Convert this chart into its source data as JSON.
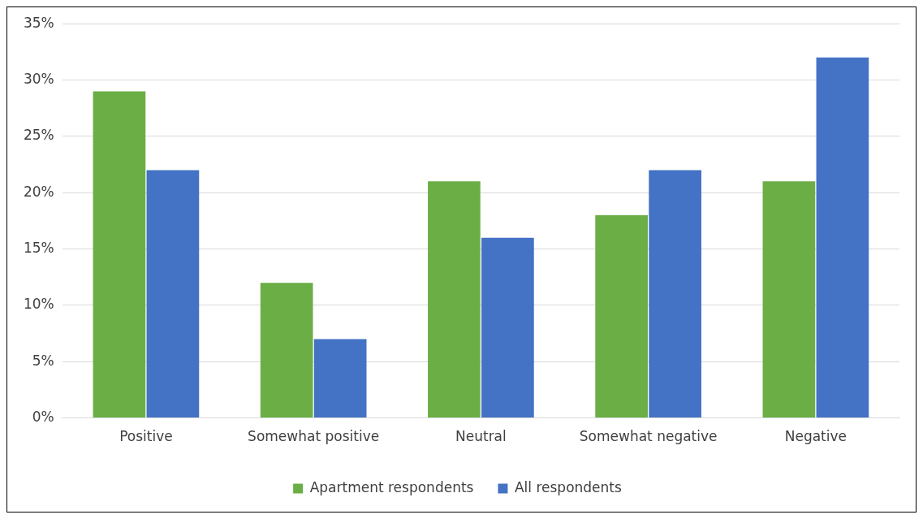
{
  "chart_data": {
    "type": "bar",
    "categories": [
      "Positive",
      "Somewhat positive",
      "Neutral",
      "Somewhat negative",
      "Negative"
    ],
    "series": [
      {
        "name": "Apartment respondents",
        "color": "#6aae45",
        "values": [
          29,
          12,
          21,
          18,
          21
        ]
      },
      {
        "name": "All respondents",
        "color": "#4472c4",
        "values": [
          22,
          7,
          16,
          22,
          32
        ]
      }
    ],
    "ylim": [
      0,
      35
    ],
    "yticks": [
      {
        "value": 0,
        "label": "0%"
      },
      {
        "value": 5,
        "label": "5%"
      },
      {
        "value": 10,
        "label": "10%"
      },
      {
        "value": 15,
        "label": "15%"
      },
      {
        "value": 20,
        "label": "20%"
      },
      {
        "value": 25,
        "label": "25%"
      },
      {
        "value": 30,
        "label": "30%"
      },
      {
        "value": 35,
        "label": "35%"
      }
    ],
    "grid": "y",
    "legend": "bottom"
  }
}
